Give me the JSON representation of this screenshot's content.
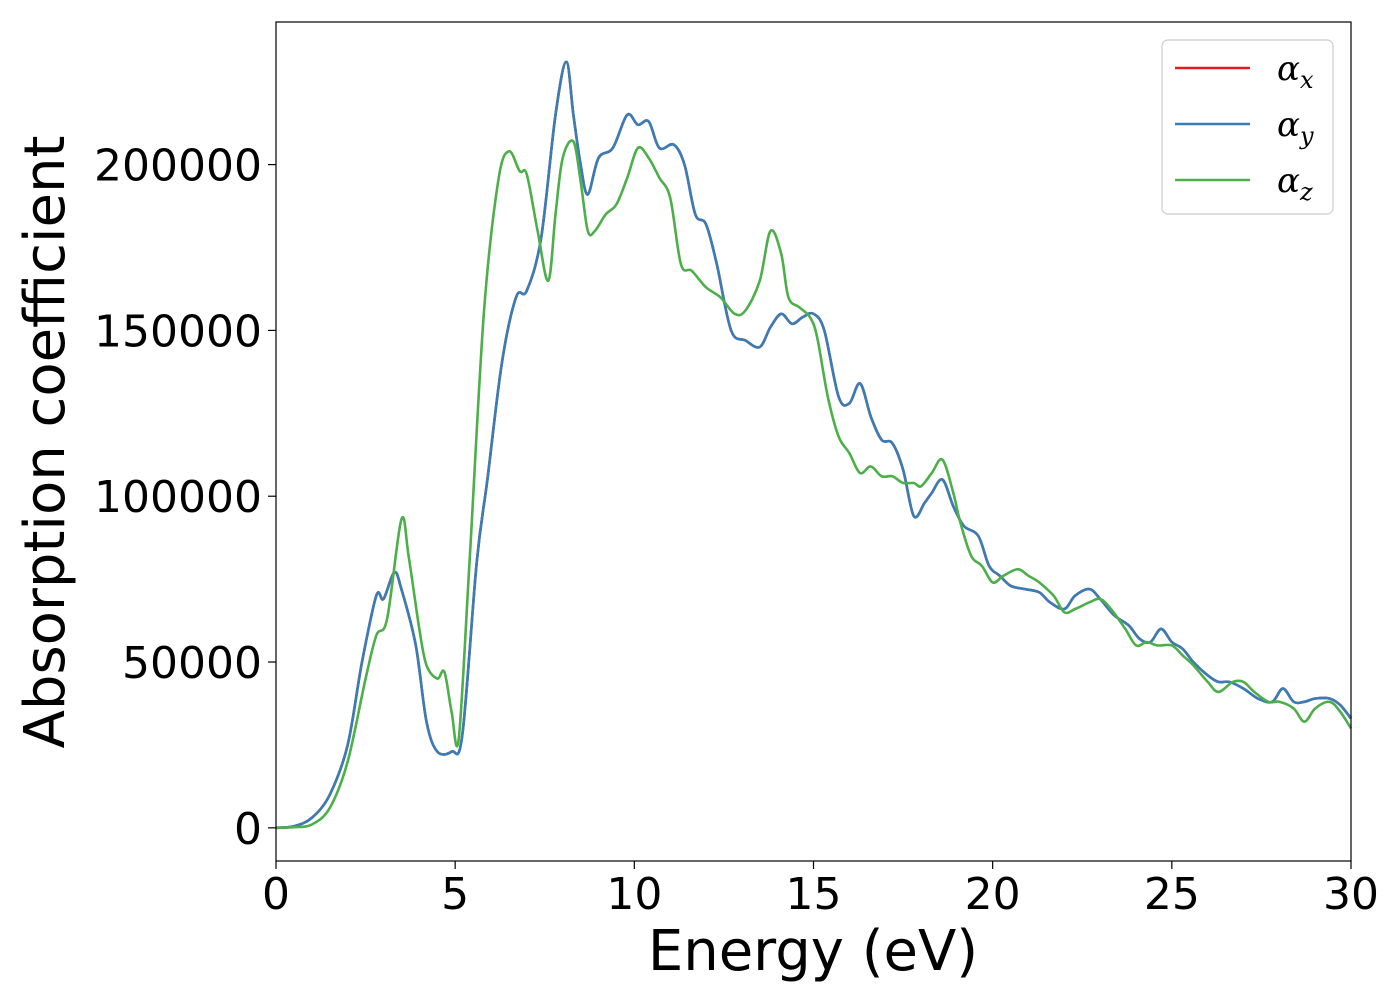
{
  "chart_data": {
    "type": "line",
    "xlabel": "Energy (eV)",
    "ylabel": "Absorption coefficient",
    "xlim": [
      0,
      30
    ],
    "ylim": [
      -10000,
      243000
    ],
    "xticks": [
      0,
      5,
      10,
      15,
      20,
      25,
      30
    ],
    "yticks": [
      0,
      50000,
      100000,
      150000,
      200000
    ],
    "grid": false,
    "legend_position": "top-right",
    "series": [
      {
        "name": "α_x",
        "legend_base": "α",
        "legend_sub": "x",
        "color": "#e41a1c",
        "x": [
          0,
          0.5,
          1.0,
          1.5,
          2.0,
          2.4,
          2.8,
          3.0,
          3.3,
          3.5,
          3.9,
          4.2,
          4.5,
          4.9,
          5.2,
          5.6,
          5.9,
          6.3,
          6.7,
          7.0,
          7.4,
          7.8,
          8.1,
          8.3,
          8.5,
          8.7,
          9.0,
          9.4,
          9.8,
          10.1,
          10.4,
          10.7,
          11.1,
          11.4,
          11.7,
          12.0,
          12.3,
          12.7,
          13.1,
          13.5,
          13.8,
          14.1,
          14.4,
          14.7,
          15.0,
          15.3,
          15.7,
          16.0,
          16.3,
          16.6,
          16.9,
          17.2,
          17.5,
          17.8,
          18.1,
          18.3,
          18.6,
          18.9,
          19.2,
          19.6,
          19.9,
          20.2,
          20.5,
          20.9,
          21.3,
          21.6,
          22.0,
          22.3,
          22.7,
          23.0,
          23.4,
          23.8,
          24.1,
          24.4,
          24.7,
          25.0,
          25.3,
          25.6,
          26.0,
          26.3,
          26.6,
          27.0,
          27.4,
          27.8,
          28.1,
          28.4,
          28.7,
          29.0,
          29.4,
          29.7,
          30.0
        ],
        "y": [
          0,
          500,
          3000,
          10000,
          25000,
          50000,
          70000,
          69000,
          77000,
          72000,
          55000,
          32000,
          23000,
          23000,
          28000,
          80000,
          105000,
          140000,
          160000,
          162000,
          178000,
          215000,
          231000,
          215000,
          200000,
          191000,
          202000,
          205000,
          215000,
          212000,
          213000,
          205000,
          206000,
          200000,
          185000,
          182000,
          170000,
          150000,
          147000,
          145000,
          151000,
          155000,
          152000,
          154000,
          155000,
          150000,
          130000,
          128000,
          134000,
          124000,
          117000,
          116000,
          108000,
          94000,
          98000,
          101000,
          105000,
          97000,
          91000,
          88000,
          79000,
          76000,
          73000,
          72000,
          71000,
          68000,
          66000,
          70000,
          72000,
          69000,
          64000,
          61000,
          57000,
          56000,
          60000,
          56000,
          54000,
          50000,
          46000,
          44000,
          44000,
          42000,
          39000,
          38000,
          42000,
          38000,
          38000,
          39000,
          39000,
          37000,
          33000
        ]
      },
      {
        "name": "α_y",
        "legend_base": "α",
        "legend_sub": "y",
        "color": "#377eb8",
        "x": [
          0,
          0.5,
          1.0,
          1.5,
          2.0,
          2.4,
          2.8,
          3.0,
          3.3,
          3.5,
          3.9,
          4.2,
          4.5,
          4.9,
          5.2,
          5.6,
          5.9,
          6.3,
          6.7,
          7.0,
          7.4,
          7.8,
          8.1,
          8.3,
          8.5,
          8.7,
          9.0,
          9.4,
          9.8,
          10.1,
          10.4,
          10.7,
          11.1,
          11.4,
          11.7,
          12.0,
          12.3,
          12.7,
          13.1,
          13.5,
          13.8,
          14.1,
          14.4,
          14.7,
          15.0,
          15.3,
          15.7,
          16.0,
          16.3,
          16.6,
          16.9,
          17.2,
          17.5,
          17.8,
          18.1,
          18.3,
          18.6,
          18.9,
          19.2,
          19.6,
          19.9,
          20.2,
          20.5,
          20.9,
          21.3,
          21.6,
          22.0,
          22.3,
          22.7,
          23.0,
          23.4,
          23.8,
          24.1,
          24.4,
          24.7,
          25.0,
          25.3,
          25.6,
          26.0,
          26.3,
          26.6,
          27.0,
          27.4,
          27.8,
          28.1,
          28.4,
          28.7,
          29.0,
          29.4,
          29.7,
          30.0
        ],
        "y": [
          0,
          500,
          3000,
          10000,
          25000,
          50000,
          70000,
          69000,
          77000,
          72000,
          55000,
          32000,
          23000,
          23000,
          28000,
          80000,
          105000,
          140000,
          160000,
          162000,
          178000,
          215000,
          231000,
          215000,
          200000,
          191000,
          202000,
          205000,
          215000,
          212000,
          213000,
          205000,
          206000,
          200000,
          185000,
          182000,
          170000,
          150000,
          147000,
          145000,
          151000,
          155000,
          152000,
          154000,
          155000,
          150000,
          130000,
          128000,
          134000,
          124000,
          117000,
          116000,
          108000,
          94000,
          98000,
          101000,
          105000,
          97000,
          91000,
          88000,
          79000,
          76000,
          73000,
          72000,
          71000,
          68000,
          66000,
          70000,
          72000,
          69000,
          64000,
          61000,
          57000,
          56000,
          60000,
          56000,
          54000,
          50000,
          46000,
          44000,
          44000,
          42000,
          39000,
          38000,
          42000,
          38000,
          38000,
          39000,
          39000,
          37000,
          33000
        ]
      },
      {
        "name": "α_z",
        "legend_base": "α",
        "legend_sub": "z",
        "color": "#4daf4a",
        "x": [
          0,
          0.5,
          1.0,
          1.5,
          2.0,
          2.5,
          2.8,
          3.1,
          3.5,
          3.7,
          4.0,
          4.2,
          4.5,
          4.7,
          4.9,
          5.1,
          5.4,
          5.8,
          6.2,
          6.5,
          6.8,
          7.0,
          7.3,
          7.6,
          7.8,
          8.0,
          8.3,
          8.5,
          8.7,
          8.9,
          9.2,
          9.5,
          9.8,
          10.1,
          10.4,
          10.7,
          11.0,
          11.3,
          11.6,
          12.0,
          12.4,
          12.8,
          13.1,
          13.5,
          13.8,
          14.1,
          14.3,
          14.6,
          14.9,
          15.1,
          15.4,
          15.7,
          16.0,
          16.3,
          16.6,
          16.9,
          17.2,
          17.5,
          17.8,
          18.0,
          18.3,
          18.6,
          18.9,
          19.1,
          19.4,
          19.7,
          20.0,
          20.3,
          20.7,
          21.0,
          21.3,
          21.7,
          22.0,
          22.3,
          22.7,
          23.0,
          23.3,
          23.7,
          24.0,
          24.3,
          24.6,
          25.0,
          25.3,
          25.6,
          26.0,
          26.3,
          26.7,
          27.0,
          27.3,
          27.7,
          28.0,
          28.4,
          28.7,
          29.0,
          29.4,
          29.7,
          30.0
        ],
        "y": [
          0,
          200,
          1000,
          6000,
          20000,
          45000,
          58000,
          63000,
          93000,
          82000,
          60000,
          49000,
          45000,
          47000,
          35000,
          27000,
          80000,
          155000,
          195000,
          204000,
          198000,
          197000,
          180000,
          165000,
          185000,
          202000,
          207000,
          195000,
          180000,
          180000,
          185000,
          188000,
          196000,
          205000,
          202000,
          196000,
          190000,
          170000,
          168000,
          163000,
          160000,
          155000,
          156000,
          165000,
          180000,
          173000,
          160000,
          157000,
          154000,
          148000,
          130000,
          118000,
          113000,
          107000,
          109000,
          106000,
          106000,
          104000,
          104000,
          103000,
          107000,
          111000,
          101000,
          92000,
          82000,
          79000,
          74000,
          76000,
          78000,
          76000,
          74000,
          70000,
          65000,
          66000,
          68000,
          69000,
          66000,
          60000,
          55000,
          56000,
          55000,
          55000,
          52000,
          49000,
          44000,
          41000,
          44000,
          44000,
          41000,
          38000,
          38000,
          36000,
          32000,
          36000,
          38000,
          35000,
          30000
        ]
      }
    ]
  }
}
